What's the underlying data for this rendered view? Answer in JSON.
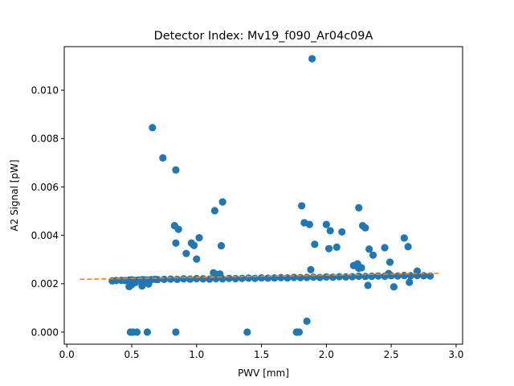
{
  "chart_data": {
    "type": "scatter",
    "title": "Detector Index: Mv19_f090_Ar04c09A",
    "xlabel": "PWV [mm]",
    "ylabel": "A2 Signal [pW]",
    "xlim": [
      -0.02,
      3.05
    ],
    "ylim": [
      -0.0005,
      0.0118
    ],
    "xticks": [
      0.0,
      0.5,
      1.0,
      1.5,
      2.0,
      2.5,
      3.0
    ],
    "xtick_labels": [
      "0.0",
      "0.5",
      "1.0",
      "1.5",
      "2.0",
      "2.5",
      "3.0"
    ],
    "yticks": [
      0.0,
      0.002,
      0.004,
      0.006,
      0.008,
      0.01
    ],
    "ytick_labels": [
      "0.000",
      "0.002",
      "0.004",
      "0.006",
      "0.008",
      "0.010"
    ],
    "grid": false,
    "legend": "none",
    "colors": {
      "points": "#1f77b4",
      "fit": "#ff7f0e"
    },
    "series": [
      {
        "marker": "circle",
        "x": [
          0.35,
          0.38,
          0.42,
          0.45,
          0.48,
          0.5,
          0.52,
          0.55,
          0.58,
          0.6,
          0.62,
          0.65,
          0.68,
          0.7,
          0.75,
          0.8,
          0.85,
          0.9,
          0.95,
          1.0,
          1.05,
          1.1,
          1.15,
          1.2,
          1.25,
          1.3,
          1.35,
          1.4,
          1.45,
          1.5,
          1.55,
          1.6,
          1.65,
          1.7,
          1.75,
          1.8,
          1.85,
          1.9,
          1.95,
          2.0,
          2.05,
          2.1,
          2.15,
          2.2,
          2.25,
          2.3,
          2.35,
          2.4,
          2.45,
          2.5,
          2.55,
          2.6,
          2.65,
          2.7,
          2.75,
          2.8,
          0.48,
          0.5,
          0.53,
          0.58,
          0.63,
          1.13,
          1.15,
          1.18,
          1.88,
          2.25,
          2.32,
          2.48,
          2.52,
          2.64,
          2.7,
          0.66,
          0.74,
          0.84,
          1.89,
          0.83,
          0.86,
          0.84,
          0.92,
          0.96,
          0.98,
          1.0,
          1.02,
          1.14,
          1.19,
          1.2,
          1.81,
          1.83,
          1.87,
          1.91,
          2.0,
          2.02,
          2.03,
          2.08,
          2.12,
          2.24,
          2.25,
          2.28,
          2.3,
          2.33,
          2.36,
          2.45,
          2.49,
          2.6,
          2.63,
          2.21,
          2.27,
          0.49,
          0.51,
          0.54,
          0.62,
          0.84,
          1.39,
          1.77,
          1.78,
          1.79,
          1.85
        ],
        "y": [
          0.00212,
          0.00213,
          0.00214,
          0.00213,
          0.00215,
          0.00216,
          0.00214,
          0.00215,
          0.00217,
          0.00216,
          0.00215,
          0.00217,
          0.00218,
          0.00217,
          0.00218,
          0.00219,
          0.00218,
          0.0022,
          0.00219,
          0.00221,
          0.0022,
          0.00219,
          0.00221,
          0.0022,
          0.00222,
          0.00221,
          0.00222,
          0.00223,
          0.00222,
          0.00224,
          0.00223,
          0.00224,
          0.00225,
          0.00224,
          0.00226,
          0.00225,
          0.00226,
          0.00227,
          0.00226,
          0.00228,
          0.00227,
          0.00229,
          0.00228,
          0.00229,
          0.00231,
          0.0023,
          0.00231,
          0.00232,
          0.00231,
          0.00233,
          0.00232,
          0.00234,
          0.00233,
          0.00234,
          0.00233,
          0.00232,
          0.00188,
          0.00196,
          0.00205,
          0.00191,
          0.00199,
          0.00245,
          0.00239,
          0.0024,
          0.00258,
          0.00264,
          0.00193,
          0.00242,
          0.00187,
          0.00206,
          0.00252,
          0.00845,
          0.0072,
          0.0067,
          0.0113,
          0.0044,
          0.00425,
          0.00368,
          0.00325,
          0.00368,
          0.00358,
          0.00302,
          0.0039,
          0.00502,
          0.00357,
          0.00538,
          0.00522,
          0.00452,
          0.00445,
          0.00363,
          0.00445,
          0.00345,
          0.00419,
          0.00351,
          0.00414,
          0.00282,
          0.00514,
          0.0044,
          0.00431,
          0.00343,
          0.00318,
          0.00349,
          0.00289,
          0.00389,
          0.00353,
          0.00275,
          0.00266,
          0.0,
          0.0,
          0.0,
          0.0,
          0.0,
          0.0,
          0.0,
          0.0,
          0.0,
          0.00045
        ]
      }
    ],
    "fit_line": {
      "style": "dashed",
      "x": [
        0.1,
        2.87
      ],
      "y": [
        0.00218,
        0.00243
      ]
    }
  }
}
